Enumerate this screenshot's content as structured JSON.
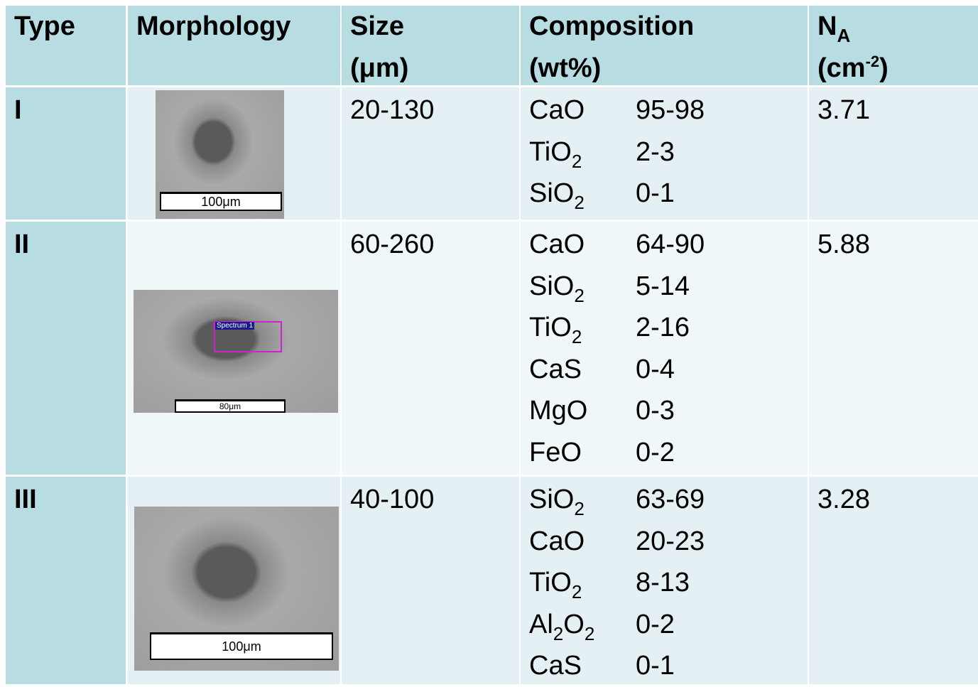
{
  "table": {
    "header": {
      "type": "Type",
      "morphology": "Morphology",
      "size": [
        "Size",
        "(μm)"
      ],
      "composition": [
        "Composition",
        "(wt%)"
      ],
      "na_symbol": "N",
      "na_subscript": "A",
      "na_unit_open": "(cm",
      "na_unit_exponent": "-2",
      "na_unit_close": ")"
    },
    "rows": [
      {
        "type": "I",
        "image": {
          "scale": "100μm"
        },
        "size": "20-130",
        "composition": [
          [
            "CaO",
            "95-98"
          ],
          [
            "TiO2",
            "2-3"
          ],
          [
            "SiO2",
            "0-1"
          ]
        ],
        "na": 3.71
      },
      {
        "type": "II",
        "image": {
          "scale": "80μm",
          "spectrum": "Spectrum 1"
        },
        "size": "60-260",
        "composition": [
          [
            "CaO",
            "64-90"
          ],
          [
            "SiO2",
            "5-14"
          ],
          [
            "TiO2",
            "2-16"
          ],
          [
            "CaS",
            "0-4"
          ],
          [
            "MgO",
            "0-3"
          ],
          [
            "FeO",
            "0-2"
          ]
        ],
        "na": 5.88
      },
      {
        "type": "III",
        "image": {
          "scale": "100μm"
        },
        "size": "40-100",
        "composition": [
          [
            "SiO2",
            "63-69"
          ],
          [
            "CaO",
            "20-23"
          ],
          [
            "TiO2",
            "8-13"
          ],
          [
            "Al2O2",
            "0-2"
          ],
          [
            "CaS",
            "0-1"
          ]
        ],
        "na": 3.28
      }
    ]
  }
}
